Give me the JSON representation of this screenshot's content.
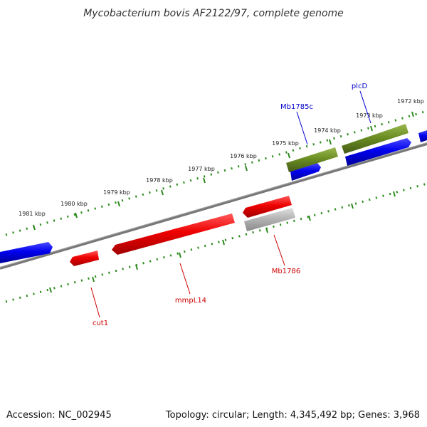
{
  "title": "Mycobacterium bovis AF2122/97, complete genome",
  "footer": {
    "accession": "Accession: NC_002945",
    "info": "Topology: circular; Length: 4,345,492 bp; Genes: 3,968"
  },
  "scale_labels": [
    "1981 kbp",
    "1980 kbp",
    "1979 kbp",
    "1978 kbp",
    "1977 kbp",
    "1976 kbp",
    "1975 kbp",
    "1974 kbp",
    "1973 kbp",
    "1972 kbp"
  ],
  "gene_labels": {
    "mb1785c": "Mb1785c",
    "plcd": "plcD",
    "mb1786": "Mb1786",
    "mmpl14": "mmpL14",
    "cut1": "cut1"
  },
  "colors": {
    "forward_gene": "#0000ee",
    "reverse_gene": "#ee0000",
    "cds_green": "#6b8e23",
    "pseudo_gray": "#b5b5b5",
    "backbone": "#777777",
    "tick_green": "#2e8b1f",
    "label_blue": "#0000cc",
    "label_red": "#cc0000"
  }
}
